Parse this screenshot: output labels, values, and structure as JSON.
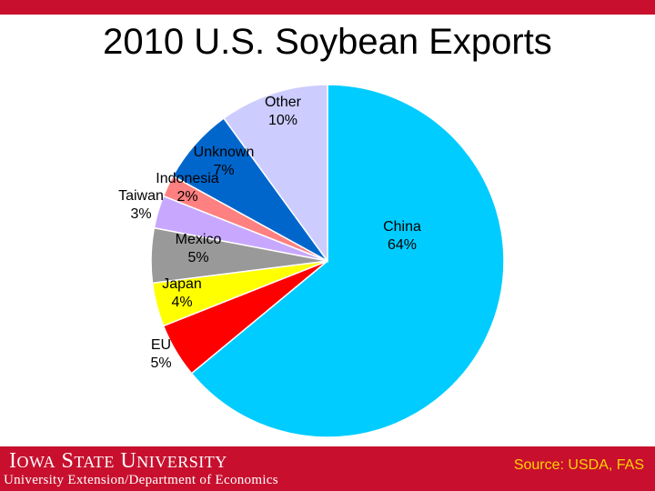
{
  "chart_data": {
    "type": "pie",
    "title": "2010 U.S. Soybean Exports",
    "slices": [
      {
        "name": "China",
        "value": 64,
        "label": "64%",
        "color": "#00ccff"
      },
      {
        "name": "EU",
        "value": 5,
        "label": "5%",
        "color": "#ff0000"
      },
      {
        "name": "Japan",
        "value": 4,
        "label": "4%",
        "color": "#ffff00"
      },
      {
        "name": "Mexico",
        "value": 5,
        "label": "5%",
        "color": "#999999"
      },
      {
        "name": "Taiwan",
        "value": 3,
        "label": "3%",
        "color": "#c8a8ff"
      },
      {
        "name": "Indonesia",
        "value": 2,
        "label": "2%",
        "color": "#ff8080"
      },
      {
        "name": "Unknown",
        "value": 7,
        "label": "7%",
        "color": "#0066cc"
      },
      {
        "name": "Other",
        "value": 10,
        "label": "10%",
        "color": "#ccccff"
      }
    ]
  },
  "footer": {
    "logo_text": "Iowa State University",
    "department": "University Extension/Department of Economics",
    "source": "Source: USDA, FAS"
  },
  "colors": {
    "brand_red": "#c8102e",
    "source_text": "#ffd200"
  }
}
